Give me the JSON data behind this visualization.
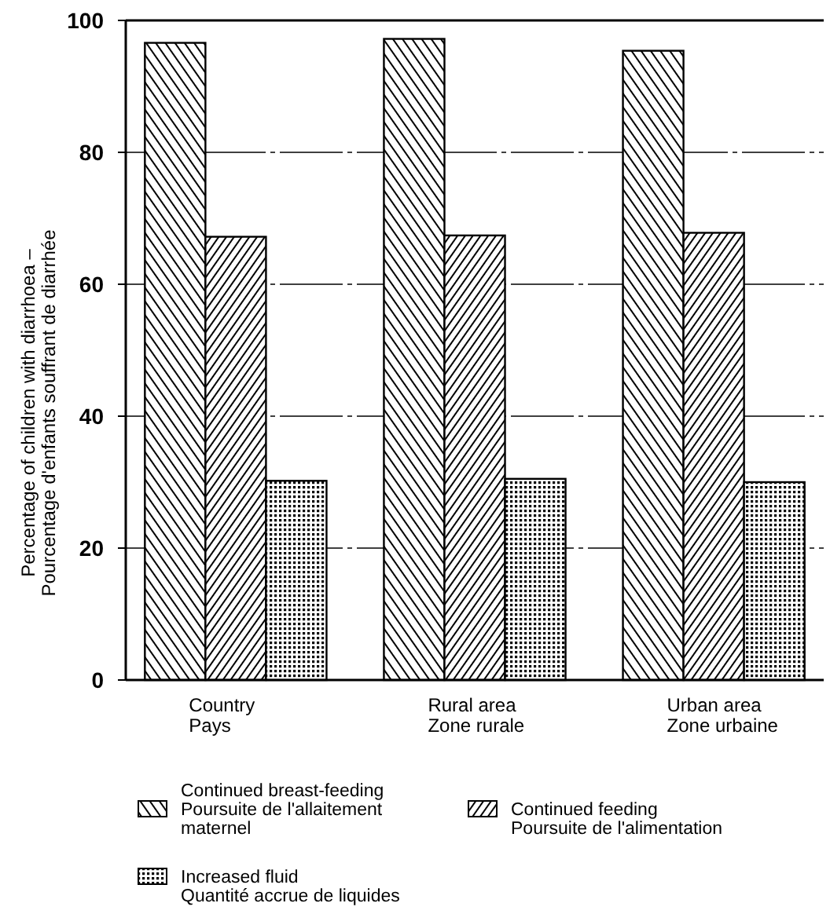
{
  "chart_data": {
    "type": "bar",
    "ylabel": "Percentage of children with diarrhoea –\nPourcentage d'enfants souffrant de diarrhée",
    "categories": [
      "Country\nPays",
      "Rural area\nZone rurale",
      "Urban area\nZone urbaine"
    ],
    "series": [
      {
        "name": "Continued breast-feeding\nPoursuite de l'allaitement\nmaternel",
        "color": "#000000",
        "values": [
          96.6,
          97.2,
          95.4
        ]
      },
      {
        "name": "Continued feeding\nPoursuite de l'alimentation",
        "color": "#000000",
        "values": [
          67.2,
          67.4,
          67.8
        ]
      },
      {
        "name": "Increased fluid\nQuantité accrue de liquides",
        "color": "#000000",
        "values": [
          30.2,
          30.5,
          30.0
        ]
      }
    ],
    "ylim": [
      0,
      100
    ],
    "yticks": [
      0,
      20,
      40,
      60,
      80,
      100
    ],
    "grid": "y",
    "legend": "bottom"
  }
}
